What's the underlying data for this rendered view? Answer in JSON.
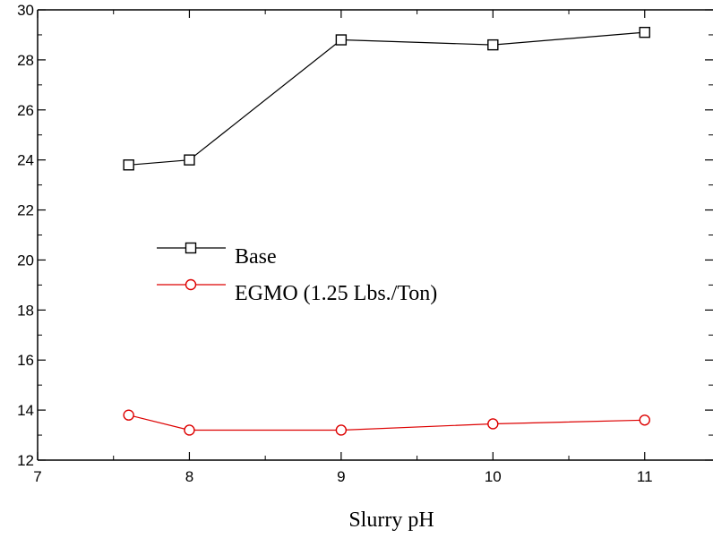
{
  "chart_data": {
    "type": "line",
    "title": "",
    "xlabel": "Slurry pH",
    "ylabel": "",
    "xlim": [
      7,
      11.45
    ],
    "ylim": [
      12,
      30
    ],
    "xticks": [
      7,
      8,
      9,
      10,
      11
    ],
    "yticks": [
      12,
      14,
      16,
      18,
      20,
      22,
      24,
      26,
      28,
      30
    ],
    "grid": false,
    "legend_position": "center-left",
    "series": [
      {
        "name": "Base",
        "color": "#000000",
        "marker": "square",
        "points": [
          {
            "x": 7.6,
            "y": 23.8
          },
          {
            "x": 8,
            "y": 24.0
          },
          {
            "x": 9,
            "y": 28.8
          },
          {
            "x": 10,
            "y": 28.6
          },
          {
            "x": 11,
            "y": 29.1
          }
        ]
      },
      {
        "name": "EGMO (1.25 Lbs./Ton)",
        "color": "#dd0000",
        "marker": "circle",
        "points": [
          {
            "x": 7.6,
            "y": 13.8
          },
          {
            "x": 8,
            "y": 13.2
          },
          {
            "x": 9,
            "y": 13.2
          },
          {
            "x": 10,
            "y": 13.45
          },
          {
            "x": 11,
            "y": 13.6
          }
        ]
      }
    ]
  }
}
